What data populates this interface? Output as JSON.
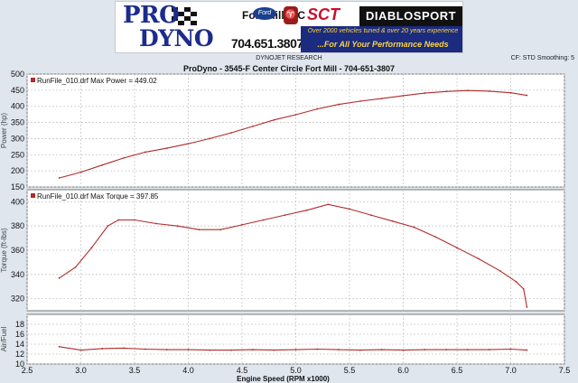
{
  "banner": {
    "brand_line1": "PRO",
    "brand_line2": "DYNO",
    "location_line1": "Fort Mill, SC",
    "phone": "704.651.3807",
    "ford_logo": "Ford",
    "sct_logo": "SCT",
    "diablo_logo": "DIABLOSPORT",
    "tagline1": "Over 2000 vehicles tuned & over 20 years experience",
    "tagline2": "...For All Your Performance Needs"
  },
  "header": {
    "research": "DYNOJET RESEARCH",
    "title": "ProDyno - 3545-F Center Circle Fort Mill  - 704-651-3807",
    "correction": "CF: STD  Smoothing: 5"
  },
  "chart_data": [
    {
      "type": "line",
      "id": "power",
      "ylabel": "Power (hp)",
      "ylim": [
        150,
        500
      ],
      "yticks": [
        150,
        200,
        250,
        300,
        350,
        400,
        450,
        500
      ],
      "xlim": [
        2.5,
        7.5
      ],
      "grid": true,
      "legend": "top-left",
      "annotation": "RunFile_010.drf Max Power = 449.02",
      "series": [
        {
          "name": "RunFile_010.drf",
          "color": "#b02b2b",
          "x": [
            2.8,
            3.0,
            3.2,
            3.4,
            3.6,
            3.8,
            4.0,
            4.2,
            4.4,
            4.6,
            4.8,
            5.0,
            5.2,
            5.4,
            5.6,
            5.8,
            6.0,
            6.2,
            6.4,
            6.6,
            6.8,
            7.0,
            7.15
          ],
          "y": [
            178,
            196,
            218,
            240,
            258,
            270,
            284,
            300,
            318,
            338,
            358,
            374,
            392,
            406,
            416,
            424,
            433,
            441,
            446,
            449,
            447,
            442,
            434
          ]
        }
      ]
    },
    {
      "type": "line",
      "id": "torque",
      "ylabel": "Torque (ft-lbs)",
      "ylim": [
        310,
        410
      ],
      "yticks": [
        320,
        340,
        360,
        380,
        400
      ],
      "xlim": [
        2.5,
        7.5
      ],
      "grid": true,
      "legend": "top-left",
      "annotation": "RunFile_010.drf Max Torque = 397.85",
      "series": [
        {
          "name": "RunFile_010.drf",
          "color": "#b02b2b",
          "x": [
            2.8,
            2.95,
            3.1,
            3.25,
            3.35,
            3.5,
            3.7,
            3.9,
            4.1,
            4.3,
            4.5,
            4.7,
            4.9,
            5.1,
            5.3,
            5.5,
            5.7,
            5.9,
            6.1,
            6.3,
            6.5,
            6.7,
            6.9,
            7.05,
            7.12,
            7.15
          ],
          "y": [
            337,
            346,
            362,
            380,
            385,
            385,
            382,
            380,
            377,
            377,
            381,
            385,
            389,
            393,
            397.85,
            394,
            389,
            384,
            379,
            371,
            362,
            353,
            343,
            334,
            328,
            313
          ]
        }
      ]
    },
    {
      "type": "line",
      "id": "afr",
      "ylabel": "Air/Fuel",
      "ylim": [
        10,
        20
      ],
      "yticks": [
        10,
        12,
        14,
        16,
        18
      ],
      "xlim": [
        2.5,
        7.5
      ],
      "xticks": [
        2.5,
        3.0,
        3.5,
        4.0,
        4.5,
        5.0,
        5.5,
        6.0,
        6.5,
        7.0,
        7.5
      ],
      "xlabel": "Engine Speed (RPM x1000)",
      "grid": true,
      "series": [
        {
          "name": "Air/Fuel",
          "color": "#b02b2b",
          "x": [
            2.8,
            3.0,
            3.2,
            3.4,
            3.6,
            3.8,
            4.0,
            4.2,
            4.4,
            4.6,
            4.8,
            5.0,
            5.2,
            5.4,
            5.6,
            5.8,
            6.0,
            6.2,
            6.4,
            6.6,
            6.8,
            7.0,
            7.15
          ],
          "y": [
            13.5,
            12.8,
            13.1,
            13.2,
            13.0,
            12.9,
            12.9,
            12.8,
            12.8,
            12.9,
            12.8,
            12.9,
            13.0,
            12.9,
            12.8,
            12.9,
            12.8,
            12.9,
            12.9,
            12.9,
            12.9,
            13.0,
            12.8
          ]
        }
      ]
    }
  ]
}
